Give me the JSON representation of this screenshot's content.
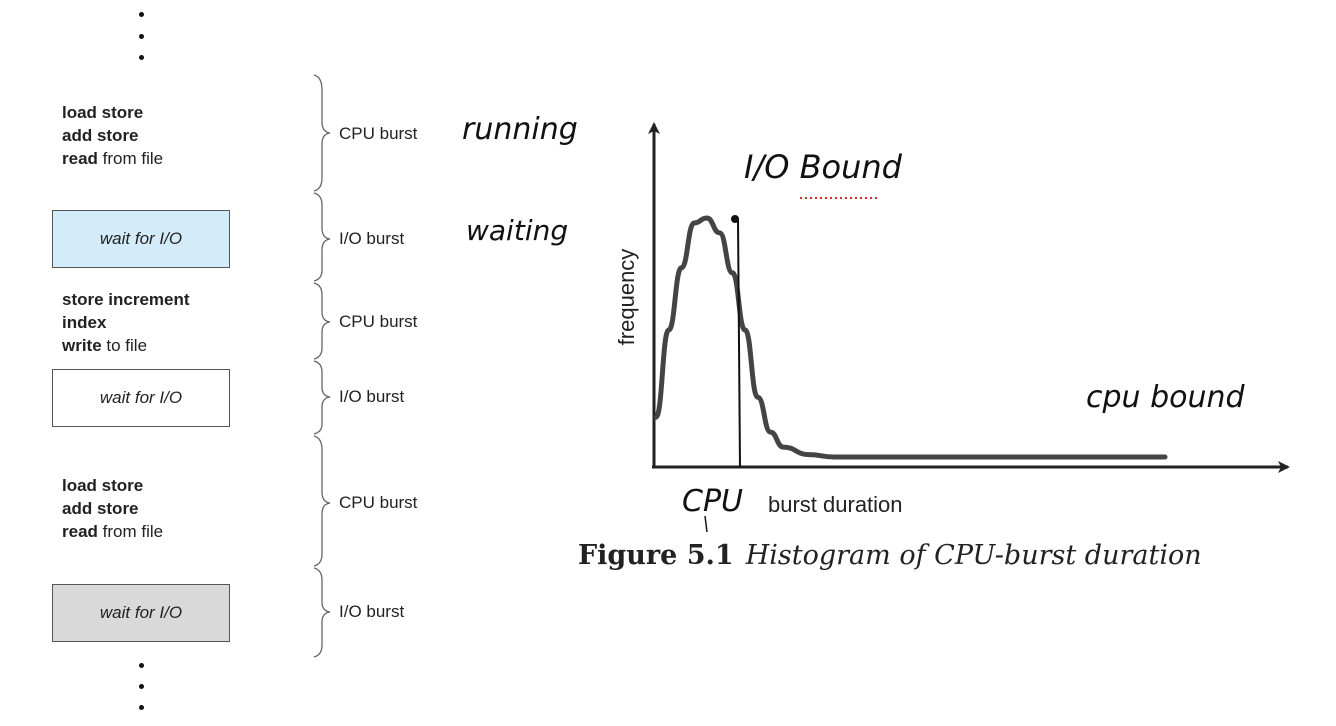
{
  "left": {
    "blocks": [
      {
        "kind": "code",
        "lines": [
          {
            "bold": "load store",
            "rest": ""
          },
          {
            "bold": "add store",
            "rest": ""
          },
          {
            "bold": "read",
            "rest": " from file"
          }
        ]
      },
      {
        "kind": "wait",
        "label": "wait for I/O",
        "fill": "#d4ecfa"
      },
      {
        "kind": "code",
        "lines": [
          {
            "bold": "store increment",
            "rest": ""
          },
          {
            "bold": "index",
            "rest": ""
          },
          {
            "bold": "write",
            "rest": " to file"
          }
        ]
      },
      {
        "kind": "wait",
        "label": "wait for I/O",
        "fill": "#ffffff"
      },
      {
        "kind": "code",
        "lines": [
          {
            "bold": "load store",
            "rest": ""
          },
          {
            "bold": "add store",
            "rest": ""
          },
          {
            "bold": "read",
            "rest": " from file"
          }
        ]
      },
      {
        "kind": "wait",
        "label": "wait for I/O",
        "fill": "#d9d9d9"
      }
    ],
    "bursts": [
      "CPU burst",
      "I/O burst",
      "CPU burst",
      "I/O burst",
      "CPU burst",
      "I/O burst"
    ]
  },
  "annotations": {
    "running": "running",
    "waiting": "waiting",
    "io_bound": "I/O Bound",
    "cpu_bound": "cpu bound",
    "cpu": "CPU"
  },
  "chart_data": {
    "type": "line",
    "title": "",
    "xlabel": "burst duration",
    "ylabel": "frequency",
    "x": [
      0,
      1,
      2,
      3,
      4,
      5,
      6,
      7,
      8,
      9,
      10,
      12,
      14,
      16,
      18,
      20,
      24,
      28,
      32,
      36,
      40
    ],
    "values": [
      20,
      55,
      80,
      98,
      100,
      94,
      78,
      55,
      28,
      14,
      8,
      5,
      4,
      4,
      4,
      4,
      4,
      4,
      4,
      4,
      4
    ],
    "grid": false,
    "curve_color": "#444444"
  },
  "caption": {
    "figure": "Figure 5.1",
    "text": "Histogram of CPU-burst duration"
  }
}
